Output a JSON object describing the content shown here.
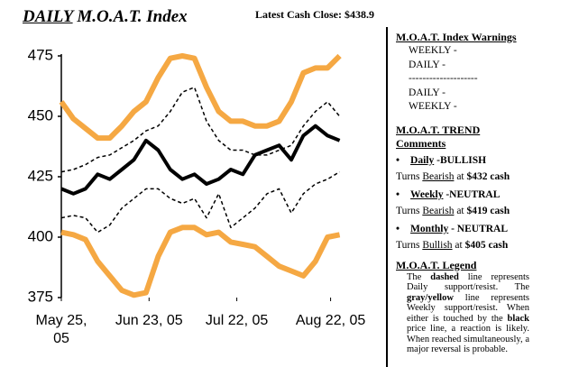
{
  "chart_data": {
    "type": "line",
    "title": [
      "DAILY",
      "M.O.A.T. Index"
    ],
    "annotation": "Latest Cash Close: $438.9",
    "x": [
      "2005-05-25",
      "2005-05-29",
      "2005-06-02",
      "2005-06-06",
      "2005-06-10",
      "2005-06-14",
      "2005-06-18",
      "2005-06-22",
      "2005-06-26",
      "2005-06-30",
      "2005-07-04",
      "2005-07-08",
      "2005-07-12",
      "2005-07-16",
      "2005-07-20",
      "2005-07-24",
      "2005-07-28",
      "2005-08-01",
      "2005-08-05",
      "2005-08-09",
      "2005-08-13",
      "2005-08-17",
      "2005-08-21",
      "2005-08-25"
    ],
    "xlim": [
      "2005-05-25",
      "2005-08-26"
    ],
    "xticks": [
      {
        "value": "2005-05-25",
        "label": "May 25, 05"
      },
      {
        "value": "2005-06-23",
        "label": "Jun 23, 05"
      },
      {
        "value": "2005-07-22",
        "label": "Jul 22, 05"
      },
      {
        "value": "2005-08-22",
        "label": "Aug 22, 05"
      }
    ],
    "ylim": [
      375,
      475
    ],
    "yticks": [
      375,
      400,
      425,
      450,
      475
    ],
    "grid": false,
    "series": [
      {
        "color": "#f5a843",
        "style": "solid",
        "width": 6,
        "values": [
          456,
          449,
          445,
          441,
          441,
          446,
          452,
          456,
          466,
          474,
          475,
          474,
          462,
          452,
          448,
          448,
          446,
          446,
          448,
          456,
          468,
          470,
          470,
          475
        ]
      },
      {
        "color": "#f5a843",
        "style": "solid",
        "width": 6,
        "values": [
          402,
          401,
          399,
          390,
          384,
          378,
          376,
          377,
          392,
          402,
          404,
          404,
          401,
          402,
          398,
          397,
          396,
          392,
          388,
          386,
          384,
          390,
          400,
          401
        ]
      },
      {
        "color": "#000000",
        "style": "dashed",
        "width": 1.5,
        "values": [
          427,
          428,
          430,
          433,
          434,
          437,
          440,
          444,
          446,
          452,
          460,
          462,
          448,
          440,
          436,
          436,
          434,
          434,
          436,
          438,
          446,
          452,
          456,
          450
        ]
      },
      {
        "color": "#000000",
        "style": "dashed",
        "width": 1.5,
        "values": [
          408,
          409,
          408,
          402,
          405,
          412,
          416,
          420,
          420,
          416,
          414,
          416,
          408,
          418,
          404,
          408,
          412,
          418,
          420,
          410,
          418,
          422,
          424,
          427
        ]
      },
      {
        "color": "#000000",
        "style": "solid",
        "width": 4,
        "values": [
          420,
          418,
          420,
          426,
          424,
          428,
          432,
          440,
          436,
          428,
          424,
          426,
          422,
          424,
          428,
          426,
          434,
          436,
          438,
          432,
          442,
          446,
          442,
          440
        ]
      }
    ]
  },
  "panel": {
    "warnings": {
      "heading": "M.O.A.T. Index Warnings",
      "lines": [
        "WEEKLY -",
        "DAILY -",
        "--------------------",
        "DAILY -",
        "WEEKLY -"
      ]
    },
    "trend": {
      "heading": "M.O.A.T. TREND Comments",
      "items": [
        {
          "label": "Daily",
          "status": " -BULLISH",
          "turn": [
            "Turns ",
            "Bearish",
            " at ",
            "$432 cash"
          ]
        },
        {
          "label": "Weekly",
          "status": " -NEUTRAL",
          "turn": [
            "Turns ",
            "Bearish",
            " at ",
            "$419 cash"
          ]
        },
        {
          "label": "Monthly",
          "status": " - NEUTRAL",
          "turn": [
            "Turns ",
            "Bullish",
            " at ",
            "$405 cash"
          ]
        }
      ]
    },
    "legend": {
      "heading": "M.O.A.T. Legend",
      "text": [
        "The ",
        "dashed",
        " line represents Daily support/resist. The ",
        "gray/yellow",
        " line represents Weekly support/resist. When either is touched by the ",
        "black",
        " price line, a reaction is likely. When reached simultaneously, a major reversal is probable."
      ]
    }
  }
}
